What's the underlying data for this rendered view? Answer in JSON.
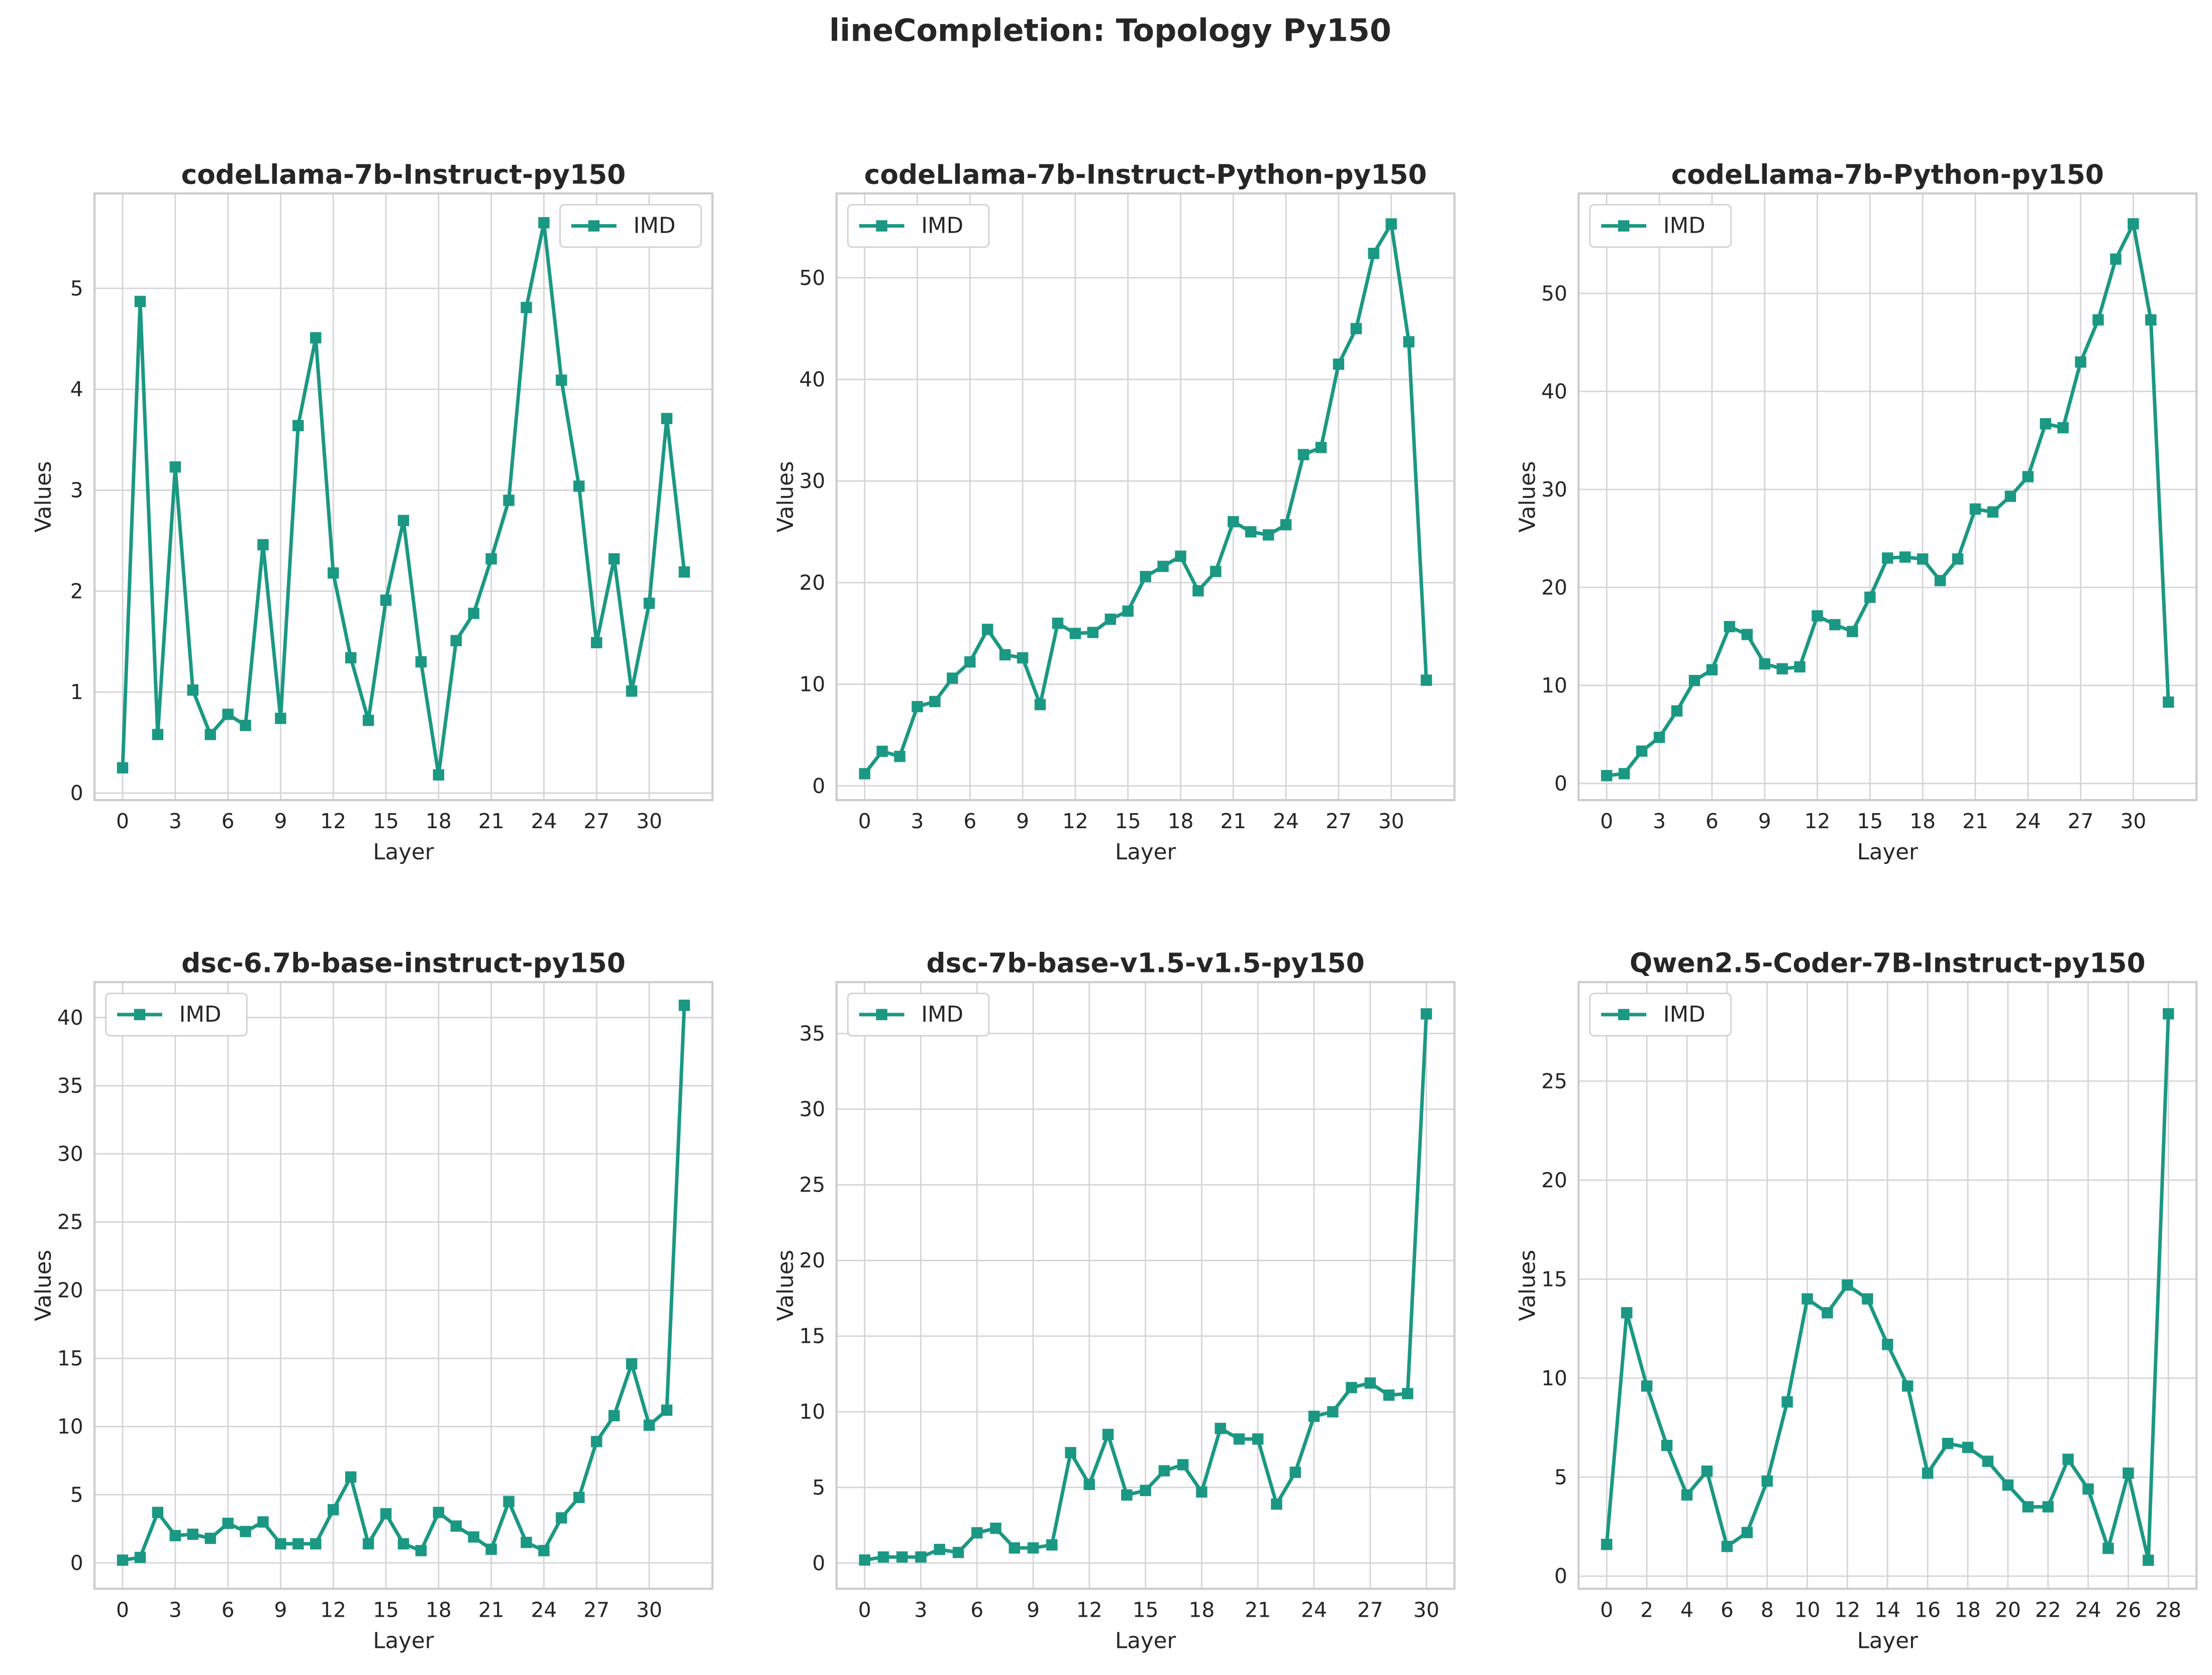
{
  "suptitle": "lineCompletion: Topology Py150",
  "chart_data": [
    {
      "type": "line",
      "title": "codeLlama-7b-Instruct-py150",
      "xlabel": "Layer",
      "ylabel": "Values",
      "legend": "upper right",
      "grid": true,
      "x": [
        0,
        1,
        2,
        3,
        4,
        5,
        6,
        7,
        8,
        9,
        10,
        11,
        12,
        13,
        14,
        15,
        16,
        17,
        18,
        19,
        20,
        21,
        22,
        23,
        24,
        25,
        26,
        27,
        28,
        29,
        30,
        31,
        32
      ],
      "series": [
        {
          "name": "IMD",
          "color": "#1b9883",
          "values": [
            0.25,
            4.87,
            0.58,
            3.23,
            1.02,
            0.58,
            0.78,
            0.67,
            2.46,
            0.74,
            3.64,
            4.51,
            2.18,
            1.34,
            0.72,
            1.91,
            2.7,
            1.3,
            0.18,
            1.51,
            1.78,
            2.32,
            2.9,
            4.81,
            5.65,
            4.09,
            3.04,
            1.49,
            2.32,
            1.01,
            1.88,
            3.71,
            2.19
          ]
        }
      ],
      "xlim": [
        -1.6,
        33.6
      ],
      "xticks": [
        0,
        3,
        6,
        9,
        12,
        15,
        18,
        21,
        24,
        27,
        30
      ],
      "ylim": [
        -0.07,
        5.94
      ],
      "yticks": [
        0,
        1,
        2,
        3,
        4,
        5
      ]
    },
    {
      "type": "line",
      "title": "codeLlama-7b-Instruct-Python-py150",
      "xlabel": "Layer",
      "ylabel": "Values",
      "legend": "upper left",
      "grid": true,
      "x": [
        0,
        1,
        2,
        3,
        4,
        5,
        6,
        7,
        8,
        9,
        10,
        11,
        12,
        13,
        14,
        15,
        16,
        17,
        18,
        19,
        20,
        21,
        22,
        23,
        24,
        25,
        26,
        27,
        28,
        29,
        30,
        31,
        32
      ],
      "series": [
        {
          "name": "IMD",
          "color": "#1b9883",
          "values": [
            1.2,
            3.4,
            2.9,
            7.8,
            8.3,
            10.6,
            12.2,
            15.4,
            12.9,
            12.6,
            8.0,
            16.0,
            15.0,
            15.1,
            16.4,
            17.2,
            20.6,
            21.6,
            22.6,
            19.2,
            21.1,
            26.0,
            25.0,
            24.7,
            25.7,
            32.6,
            33.3,
            41.5,
            45.0,
            52.4,
            55.3,
            43.7,
            10.4
          ]
        }
      ],
      "xlim": [
        -1.6,
        33.6
      ],
      "xticks": [
        0,
        3,
        6,
        9,
        12,
        15,
        18,
        21,
        24,
        27,
        30
      ],
      "ylim": [
        -1.4,
        58.3
      ],
      "yticks": [
        0,
        10,
        20,
        30,
        40,
        50
      ]
    },
    {
      "type": "line",
      "title": "codeLlama-7b-Python-py150",
      "xlabel": "Layer",
      "ylabel": "Values",
      "legend": "upper left",
      "grid": true,
      "x": [
        0,
        1,
        2,
        3,
        4,
        5,
        6,
        7,
        8,
        9,
        10,
        11,
        12,
        13,
        14,
        15,
        16,
        17,
        18,
        19,
        20,
        21,
        22,
        23,
        24,
        25,
        26,
        27,
        28,
        29,
        30,
        31,
        32
      ],
      "series": [
        {
          "name": "IMD",
          "color": "#1b9883",
          "values": [
            0.8,
            1.0,
            3.3,
            4.7,
            7.4,
            10.5,
            11.6,
            16.0,
            15.2,
            12.2,
            11.7,
            11.9,
            17.1,
            16.2,
            15.5,
            19.0,
            23.0,
            23.1,
            22.9,
            20.7,
            22.9,
            28.0,
            27.7,
            29.3,
            31.3,
            36.7,
            36.3,
            43.0,
            47.3,
            53.5,
            57.1,
            47.3,
            8.3
          ]
        }
      ],
      "xlim": [
        -1.6,
        33.6
      ],
      "xticks": [
        0,
        3,
        6,
        9,
        12,
        15,
        18,
        21,
        24,
        27,
        30
      ],
      "ylim": [
        -1.7,
        60.2
      ],
      "yticks": [
        0,
        10,
        20,
        30,
        40,
        50
      ]
    },
    {
      "type": "line",
      "title": "dsc-6.7b-base-instruct-py150",
      "xlabel": "Layer",
      "ylabel": "Values",
      "legend": "upper left",
      "grid": true,
      "x": [
        0,
        1,
        2,
        3,
        4,
        5,
        6,
        7,
        8,
        9,
        10,
        11,
        12,
        13,
        14,
        15,
        16,
        17,
        18,
        19,
        20,
        21,
        22,
        23,
        24,
        25,
        26,
        27,
        28,
        29,
        30,
        31,
        32
      ],
      "series": [
        {
          "name": "IMD",
          "color": "#1b9883",
          "values": [
            0.2,
            0.4,
            3.7,
            2.0,
            2.1,
            1.8,
            2.9,
            2.3,
            3.0,
            1.4,
            1.4,
            1.4,
            3.9,
            6.3,
            1.4,
            3.6,
            1.4,
            0.9,
            3.7,
            2.7,
            1.9,
            1.0,
            4.5,
            1.5,
            0.9,
            3.3,
            4.8,
            8.9,
            10.8,
            14.6,
            10.1,
            11.2,
            40.9
          ]
        }
      ],
      "xlim": [
        -1.6,
        33.6
      ],
      "xticks": [
        0,
        3,
        6,
        9,
        12,
        15,
        18,
        21,
        24,
        27,
        30
      ],
      "ylim": [
        -1.9,
        42.6
      ],
      "yticks": [
        0,
        5,
        10,
        15,
        20,
        25,
        30,
        35,
        40
      ]
    },
    {
      "type": "line",
      "title": "dsc-7b-base-v1.5-v1.5-py150",
      "xlabel": "Layer",
      "ylabel": "Values",
      "legend": "upper left",
      "grid": true,
      "x": [
        0,
        1,
        2,
        3,
        4,
        5,
        6,
        7,
        8,
        9,
        10,
        11,
        12,
        13,
        14,
        15,
        16,
        17,
        18,
        19,
        20,
        21,
        22,
        23,
        24,
        25,
        26,
        27,
        28,
        29,
        30
      ],
      "series": [
        {
          "name": "IMD",
          "color": "#1b9883",
          "values": [
            0.2,
            0.4,
            0.4,
            0.4,
            0.9,
            0.7,
            2.0,
            2.3,
            1.0,
            1.0,
            1.2,
            7.3,
            5.2,
            8.5,
            4.5,
            4.8,
            6.1,
            6.5,
            4.7,
            8.9,
            8.2,
            8.2,
            3.9,
            6.0,
            9.7,
            10.0,
            11.6,
            11.9,
            11.1,
            11.2,
            36.3
          ]
        }
      ],
      "xlim": [
        -1.5,
        31.5
      ],
      "xticks": [
        0,
        3,
        6,
        9,
        12,
        15,
        18,
        21,
        24,
        27,
        30
      ],
      "ylim": [
        -1.7,
        38.4
      ],
      "yticks": [
        0,
        5,
        10,
        15,
        20,
        25,
        30,
        35
      ]
    },
    {
      "type": "line",
      "title": "Qwen2.5-Coder-7B-Instruct-py150",
      "xlabel": "Layer",
      "ylabel": "Values",
      "legend": "upper left",
      "grid": true,
      "x": [
        0,
        1,
        2,
        3,
        4,
        5,
        6,
        7,
        8,
        9,
        10,
        11,
        12,
        13,
        14,
        15,
        16,
        17,
        18,
        19,
        20,
        21,
        22,
        23,
        24,
        25,
        26,
        27,
        28
      ],
      "series": [
        {
          "name": "IMD",
          "color": "#1b9883",
          "values": [
            1.6,
            13.3,
            9.6,
            6.6,
            4.1,
            5.3,
            1.5,
            2.2,
            4.8,
            8.8,
            14.0,
            13.3,
            14.7,
            14.0,
            11.7,
            9.6,
            5.2,
            6.7,
            6.5,
            5.8,
            4.6,
            3.5,
            3.5,
            5.9,
            4.4,
            1.4,
            5.2,
            0.8,
            28.4
          ]
        }
      ],
      "xlim": [
        -1.4,
        29.4
      ],
      "xticks": [
        0,
        2,
        4,
        6,
        8,
        10,
        12,
        14,
        16,
        18,
        20,
        22,
        24,
        26,
        28
      ],
      "ylim": [
        -0.64,
        30.0
      ],
      "yticks": [
        0,
        5,
        10,
        15,
        20,
        25
      ]
    }
  ]
}
